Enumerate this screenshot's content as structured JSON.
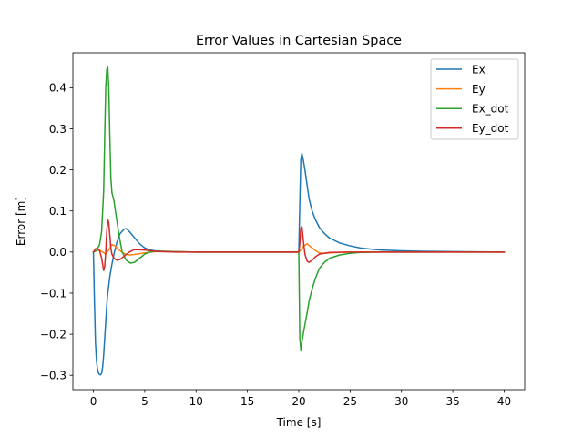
{
  "chart_data": {
    "type": "line",
    "title": "Error Values in Cartesian Space",
    "xlabel": "Time [s]",
    "ylabel": "Error [m]",
    "xlim": [
      -2,
      42
    ],
    "ylim": [
      -0.335,
      0.485
    ],
    "xticks": [
      0,
      5,
      10,
      15,
      20,
      25,
      30,
      35,
      40
    ],
    "xtick_labels": [
      "0",
      "5",
      "10",
      "15",
      "20",
      "25",
      "30",
      "35",
      "40"
    ],
    "yticks": [
      -0.3,
      -0.2,
      -0.1,
      0.0,
      0.1,
      0.2,
      0.3,
      0.4
    ],
    "ytick_labels": [
      "−0.3",
      "−0.2",
      "−0.1",
      "0.0",
      "0.1",
      "0.2",
      "0.3",
      "0.4"
    ],
    "grid": false,
    "legend_position": "top-right",
    "series": [
      {
        "name": "Ex",
        "color": "#1f77b4",
        "x": [
          0,
          0.1,
          0.2,
          0.3,
          0.4,
          0.5,
          0.6,
          0.7,
          0.8,
          0.9,
          1.0,
          1.1,
          1.2,
          1.3,
          1.4,
          1.6,
          1.8,
          2.0,
          2.3,
          2.6,
          3.0,
          3.2,
          3.5,
          4.0,
          4.5,
          5.0,
          5.5,
          6.0,
          7.0,
          8.0,
          10.0,
          12.0,
          20.0,
          20.1,
          20.2,
          20.3,
          20.4,
          20.6,
          20.8,
          21.0,
          21.3,
          21.6,
          22.0,
          22.5,
          23.0,
          24.0,
          25.0,
          26.0,
          27.0,
          28.0,
          30.0,
          32.0,
          35.0,
          40.0
        ],
        "y": [
          0,
          -0.12,
          -0.22,
          -0.265,
          -0.285,
          -0.295,
          -0.298,
          -0.299,
          -0.295,
          -0.28,
          -0.25,
          -0.21,
          -0.17,
          -0.13,
          -0.1,
          -0.06,
          -0.03,
          -0.005,
          0.025,
          0.045,
          0.056,
          0.057,
          0.05,
          0.035,
          0.02,
          0.01,
          0.005,
          0.003,
          0.001,
          0.0005,
          0.0,
          0.0,
          0.0,
          0.12,
          0.225,
          0.24,
          0.23,
          0.2,
          0.165,
          0.13,
          0.1,
          0.08,
          0.06,
          0.045,
          0.034,
          0.022,
          0.015,
          0.01,
          0.007,
          0.005,
          0.003,
          0.002,
          0.001,
          0.0
        ]
      },
      {
        "name": "Ey",
        "color": "#ff7f0e",
        "x": [
          0,
          0.3,
          0.6,
          0.9,
          1.2,
          1.5,
          1.8,
          2.1,
          2.5,
          3.0,
          3.5,
          4.0,
          5.0,
          6.0,
          8.0,
          10.0,
          20.0,
          20.2,
          20.5,
          20.8,
          21.2,
          21.6,
          22.0,
          22.5,
          23.0,
          24.0,
          26.0,
          30.0,
          40.0
        ],
        "y": [
          0,
          0.003,
          0.005,
          0.0,
          -0.005,
          0.005,
          0.018,
          0.015,
          0.005,
          -0.004,
          -0.007,
          -0.006,
          -0.002,
          0.001,
          0.001,
          0.0,
          0.0,
          0.005,
          0.015,
          0.02,
          0.012,
          0.004,
          -0.002,
          -0.003,
          -0.002,
          -0.001,
          0.0,
          0.0,
          0.0
        ]
      },
      {
        "name": "Ex_dot",
        "color": "#2ca02c",
        "x": [
          0,
          0.3,
          0.6,
          0.8,
          1.0,
          1.1,
          1.2,
          1.3,
          1.4,
          1.5,
          1.6,
          1.7,
          1.8,
          1.9,
          2.0,
          2.2,
          2.5,
          2.8,
          3.2,
          3.6,
          4.0,
          4.5,
          5.0,
          5.5,
          6.0,
          7.0,
          8.0,
          10.0,
          20.0,
          20.05,
          20.1,
          20.2,
          20.3,
          20.5,
          20.8,
          21.0,
          21.3,
          21.6,
          22.0,
          22.5,
          23.0,
          24.0,
          25.0,
          26.0,
          28.0,
          30.0,
          40.0
        ],
        "y": [
          0,
          0.004,
          0.018,
          0.05,
          0.15,
          0.28,
          0.4,
          0.445,
          0.45,
          0.4,
          0.28,
          0.18,
          0.145,
          0.135,
          0.125,
          0.09,
          0.04,
          0.0,
          -0.02,
          -0.027,
          -0.025,
          -0.015,
          -0.005,
          0.0,
          0.002,
          0.002,
          0.001,
          0.0,
          0.0,
          -0.1,
          -0.21,
          -0.238,
          -0.22,
          -0.19,
          -0.15,
          -0.12,
          -0.09,
          -0.065,
          -0.04,
          -0.025,
          -0.015,
          -0.007,
          -0.003,
          -0.001,
          0.0,
          0.0,
          0.0
        ]
      },
      {
        "name": "Ey_dot",
        "color": "#d62728",
        "x": [
          0,
          0.2,
          0.4,
          0.6,
          0.8,
          1.0,
          1.1,
          1.2,
          1.3,
          1.4,
          1.5,
          1.6,
          1.7,
          1.8,
          2.0,
          2.3,
          2.6,
          3.0,
          3.5,
          4.0,
          5.0,
          6.0,
          8.0,
          10.0,
          20.0,
          20.1,
          20.2,
          20.3,
          20.4,
          20.5,
          20.6,
          20.8,
          21.0,
          21.3,
          21.6,
          22.0,
          23.0,
          25.0,
          40.0
        ],
        "y": [
          0,
          0.008,
          0.009,
          0.004,
          -0.015,
          -0.045,
          -0.035,
          0.0,
          0.05,
          0.08,
          0.07,
          0.04,
          0.01,
          -0.005,
          -0.015,
          -0.02,
          -0.018,
          -0.01,
          0.0,
          0.006,
          0.005,
          0.002,
          0.0,
          0.0,
          0.0,
          0.02,
          0.058,
          0.063,
          0.04,
          0.015,
          -0.005,
          -0.022,
          -0.025,
          -0.02,
          -0.012,
          -0.005,
          -0.001,
          0.0,
          0.0
        ]
      }
    ]
  }
}
